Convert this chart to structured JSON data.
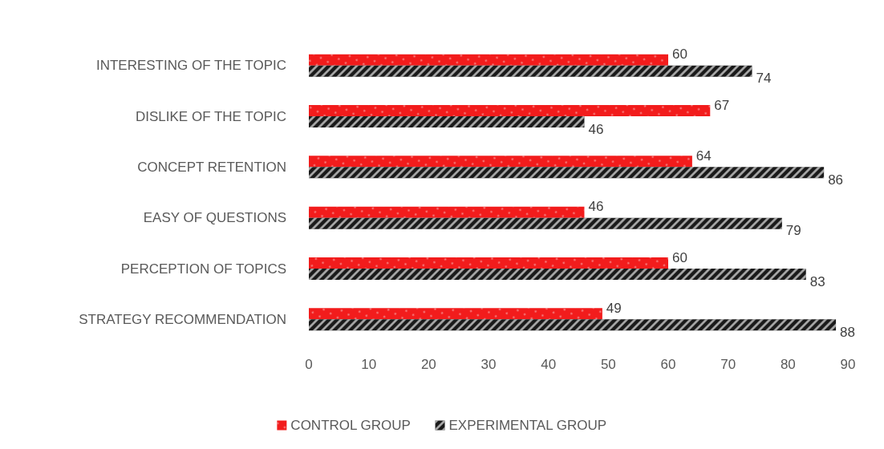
{
  "chart_data": {
    "type": "bar",
    "orientation": "horizontal",
    "categories": [
      "INTERESTING OF THE TOPIC",
      "DISLIKE OF THE TOPIC",
      "CONCEPT RETENTION",
      "EASY OF QUESTIONS",
      "PERCEPTION OF TOPICS",
      "STRATEGY RECOMMENDATION"
    ],
    "series": [
      {
        "name": "CONTROL GROUP",
        "color": "#f21c1c",
        "values": [
          60,
          67,
          64,
          46,
          60,
          49
        ]
      },
      {
        "name": "EXPERIMENTAL GROUP",
        "color": "#1a1a1a",
        "values": [
          74,
          46,
          86,
          79,
          83,
          88
        ]
      }
    ],
    "xlim": [
      0,
      90
    ],
    "xticks": [
      0,
      10,
      20,
      30,
      40,
      50,
      60,
      70,
      80,
      90
    ],
    "data_labels": true,
    "legend": "bottom",
    "grid": false
  }
}
